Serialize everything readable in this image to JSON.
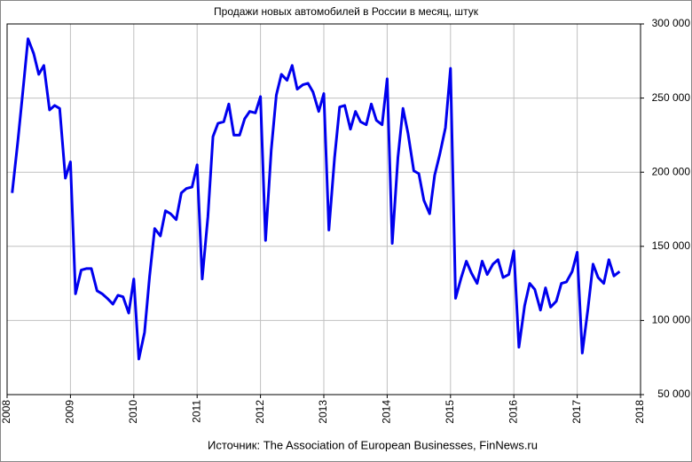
{
  "chart_data": {
    "type": "line",
    "title": "Продажи новых автомобилей в России в месяц, штук",
    "source": "Источник: The Association of European Businesses, FinNews.ru",
    "x": [
      2008.08,
      2008.17,
      2008.25,
      2008.33,
      2008.42,
      2008.5,
      2008.58,
      2008.67,
      2008.75,
      2008.83,
      2008.92,
      2009.0,
      2009.08,
      2009.17,
      2009.25,
      2009.33,
      2009.42,
      2009.5,
      2009.58,
      2009.67,
      2009.75,
      2009.83,
      2009.92,
      2010.0,
      2010.08,
      2010.17,
      2010.25,
      2010.33,
      2010.42,
      2010.5,
      2010.58,
      2010.67,
      2010.75,
      2010.83,
      2010.92,
      2011.0,
      2011.08,
      2011.17,
      2011.25,
      2011.33,
      2011.42,
      2011.5,
      2011.58,
      2011.67,
      2011.75,
      2011.83,
      2011.92,
      2012.0,
      2012.08,
      2012.17,
      2012.25,
      2012.33,
      2012.42,
      2012.5,
      2012.58,
      2012.67,
      2012.75,
      2012.83,
      2012.92,
      2013.0,
      2013.08,
      2013.17,
      2013.25,
      2013.33,
      2013.42,
      2013.5,
      2013.58,
      2013.67,
      2013.75,
      2013.83,
      2013.92,
      2014.0,
      2014.08,
      2014.17,
      2014.25,
      2014.33,
      2014.42,
      2014.5,
      2014.58,
      2014.67,
      2014.75,
      2014.83,
      2014.92,
      2015.0,
      2015.08,
      2015.17,
      2015.25,
      2015.33,
      2015.42,
      2015.5,
      2015.58,
      2015.67,
      2015.75,
      2015.83,
      2015.92,
      2016.0,
      2016.08,
      2016.17,
      2016.25,
      2016.33,
      2016.42,
      2016.5,
      2016.58,
      2016.67,
      2016.75,
      2016.83,
      2016.92,
      2017.0,
      2017.08,
      2017.17,
      2017.25,
      2017.33,
      2017.42,
      2017.5,
      2017.58,
      2017.67
    ],
    "series": [
      {
        "color": "#0000ee",
        "values": [
          186000,
          221000,
          255000,
          290000,
          280000,
          266000,
          272000,
          242000,
          245000,
          243000,
          196000,
          207000,
          118000,
          134000,
          135000,
          135000,
          120000,
          118000,
          115000,
          111000,
          117000,
          116000,
          105000,
          128000,
          74000,
          92000,
          130000,
          162000,
          157000,
          174000,
          172000,
          168000,
          186000,
          189000,
          190000,
          205000,
          128000,
          170000,
          224000,
          233000,
          234000,
          246000,
          225000,
          225000,
          236000,
          241000,
          240000,
          251000,
          154000,
          215000,
          252000,
          266000,
          262000,
          272000,
          256000,
          259000,
          260000,
          254000,
          241000,
          253000,
          161000,
          210000,
          244000,
          245000,
          229000,
          241000,
          234000,
          232000,
          246000,
          235000,
          232000,
          263000,
          152000,
          210000,
          243000,
          226000,
          201000,
          199000,
          181000,
          172000,
          198000,
          212000,
          230000,
          270000,
          115000,
          129000,
          140000,
          132000,
          125000,
          140000,
          131000,
          138000,
          141000,
          129000,
          131000,
          147000,
          82000,
          110000,
          125000,
          121000,
          107000,
          122000,
          109000,
          113000,
          125000,
          126000,
          133000,
          146000,
          78000,
          108000,
          138000,
          129000,
          125000,
          141000,
          130000,
          133000
        ]
      }
    ],
    "xlim": [
      2008,
      2018
    ],
    "xticks": [
      2008,
      2009,
      2010,
      2011,
      2012,
      2013,
      2014,
      2015,
      2016,
      2017,
      2018
    ],
    "ylim": [
      50000,
      300000
    ],
    "yticks": [
      {
        "value": 50000,
        "label": "50 000"
      },
      {
        "value": 100000,
        "label": "100 000"
      },
      {
        "value": 150000,
        "label": "150 000"
      },
      {
        "value": 200000,
        "label": "200 000"
      },
      {
        "value": 250000,
        "label": "250 000"
      },
      {
        "value": 300000,
        "label": "300 000"
      }
    ],
    "grid": true
  }
}
